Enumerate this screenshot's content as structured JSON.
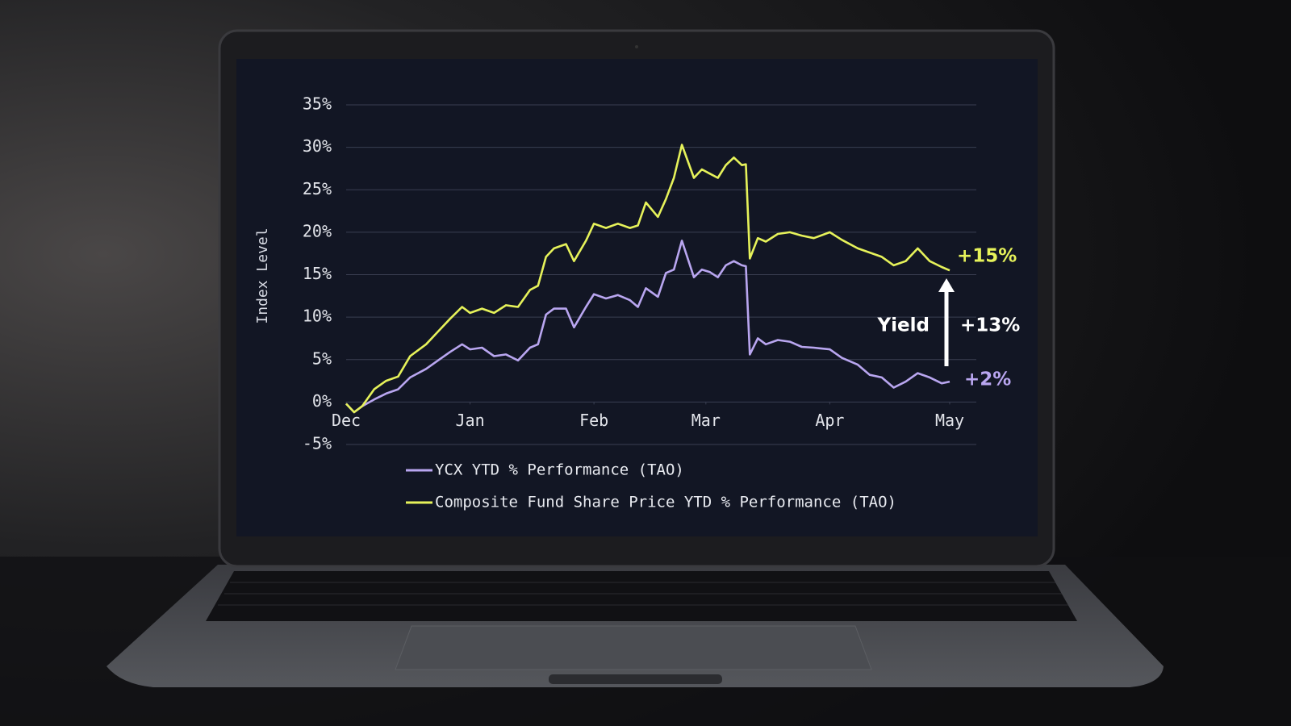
{
  "chart_data": {
    "type": "line",
    "y_label": "Index Level",
    "x": [
      0,
      2,
      4,
      7,
      10,
      13,
      16,
      20,
      23,
      26,
      29,
      31,
      34,
      37,
      40,
      43,
      46,
      48,
      50,
      52,
      55,
      57,
      60,
      62,
      65,
      68,
      71,
      73,
      75,
      78,
      80,
      82,
      84,
      87,
      89,
      91,
      93,
      95,
      97,
      99,
      100,
      101,
      103,
      105,
      108,
      111,
      114,
      117,
      121,
      124,
      128,
      131,
      134,
      137,
      140,
      143,
      146,
      149,
      151
    ],
    "xlim": [
      0,
      151
    ],
    "xticks": [
      {
        "value": 0,
        "label": "Dec"
      },
      {
        "value": 31,
        "label": "Jan"
      },
      {
        "value": 62,
        "label": "Feb"
      },
      {
        "value": 90,
        "label": "Mar"
      },
      {
        "value": 121,
        "label": "Apr"
      },
      {
        "value": 151,
        "label": "May"
      }
    ],
    "ylim": [
      -5,
      35
    ],
    "yticks": [
      {
        "value": -5,
        "label": "-5%"
      },
      {
        "value": 0,
        "label": "0%"
      },
      {
        "value": 5,
        "label": "5%"
      },
      {
        "value": 10,
        "label": "10%"
      },
      {
        "value": 15,
        "label": "15%"
      },
      {
        "value": 20,
        "label": "20%"
      },
      {
        "value": 25,
        "label": "25%"
      },
      {
        "value": 30,
        "label": "30%"
      },
      {
        "value": 35,
        "label": "35%"
      }
    ],
    "grid": true,
    "series": [
      {
        "name": "YCX YTD % Performance (TAO)",
        "color": "#b9a6f0",
        "values": [
          -0.2,
          -1.2,
          -0.5,
          0.3,
          1,
          1.5,
          2.9,
          3.9,
          4.9,
          5.9,
          6.8,
          6.2,
          6.4,
          5.4,
          5.6,
          4.9,
          6.4,
          6.8,
          10.3,
          11,
          11,
          8.8,
          11.2,
          12.7,
          12.2,
          12.6,
          12,
          11.2,
          13.4,
          12.4,
          15.2,
          15.6,
          19,
          14.7,
          15.6,
          15.3,
          14.7,
          16.1,
          16.6,
          16.1,
          16,
          5.6,
          7.5,
          6.8,
          7.3,
          7.1,
          6.5,
          6.4,
          6.2,
          5.2,
          4.4,
          3.2,
          2.9,
          1.7,
          2.4,
          3.4,
          2.9,
          2.2,
          2.4
        ]
      },
      {
        "name": "Composite Fund Share Price YTD % Performance (TAO)",
        "color": "#e6f25a",
        "values": [
          -0.2,
          -1.2,
          -0.5,
          1.5,
          2.5,
          3,
          5.4,
          6.8,
          8.3,
          9.8,
          11.2,
          10.5,
          11,
          10.5,
          11.4,
          11.2,
          13.2,
          13.7,
          17.1,
          18.1,
          18.6,
          16.6,
          19,
          21,
          20.5,
          21,
          20.5,
          20.8,
          23.5,
          21.8,
          23.9,
          26.4,
          30.3,
          26.4,
          27.4,
          26.9,
          26.4,
          27.9,
          28.8,
          27.9,
          28,
          16.9,
          19.3,
          18.9,
          19.8,
          20,
          19.6,
          19.3,
          20,
          19.1,
          18.1,
          17.6,
          17.1,
          16.1,
          16.6,
          18.1,
          16.6,
          15.9,
          15.5
        ]
      }
    ],
    "annotations": [
      {
        "text": "+15%",
        "color": "#e6f25a"
      },
      {
        "text": "Yield",
        "color": "#ffffff"
      },
      {
        "text": "+13%",
        "color": "#ffffff"
      },
      {
        "text": "+2%",
        "color": "#b9a6f0"
      }
    ]
  }
}
